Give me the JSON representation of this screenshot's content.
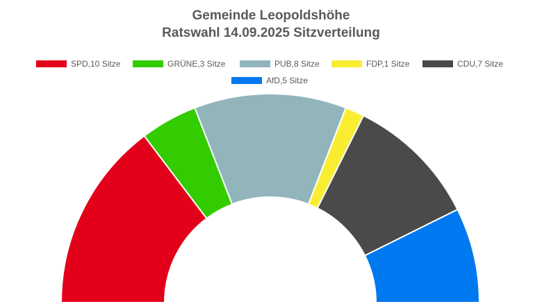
{
  "chart_data": {
    "type": "pie",
    "subtype": "half-donut",
    "title": "Gemeinde Leopoldshöhe",
    "subtitle": "Ratswahl 14.09.2025 Sitzverteilung",
    "legend_position": "top",
    "total_seats": 34,
    "series": [
      {
        "name": "SPD",
        "label": "SPD,10 Sitze",
        "value": 10,
        "color": "#e2001a"
      },
      {
        "name": "GRÜNE",
        "label": "GRÜNE,3 Sitze",
        "value": 3,
        "color": "#33cc00"
      },
      {
        "name": "PUB",
        "label": "PUB,8 Sitze",
        "value": 8,
        "color": "#91b5bb"
      },
      {
        "name": "FDP",
        "label": "FDP,1 Sitze",
        "value": 1,
        "color": "#f9ed32"
      },
      {
        "name": "CDU",
        "label": "CDU,7 Sitze",
        "value": 7,
        "color": "#4a4a4a"
      },
      {
        "name": "AfD",
        "label": "AfD,5 Sitze",
        "value": 5,
        "color": "#0078f0"
      }
    ]
  }
}
